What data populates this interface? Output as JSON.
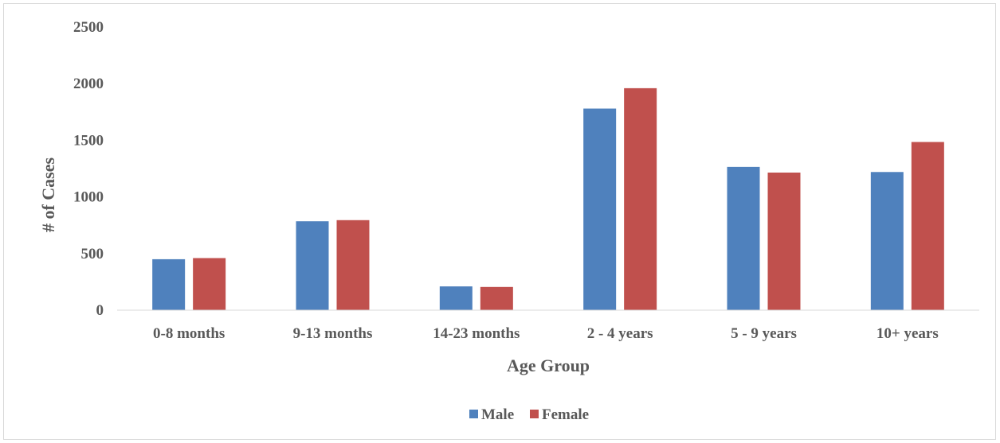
{
  "chart_data": {
    "type": "bar",
    "title": "",
    "xlabel": "Age Group",
    "ylabel": "# of Cases",
    "categories": [
      "0-8 months",
      "9-13 months",
      "14-23 months",
      "2 - 4 years",
      "5 - 9 years",
      "10+ years"
    ],
    "series": [
      {
        "name": "Male",
        "color": "#4f81bd",
        "values": [
          450,
          785,
          210,
          1780,
          1265,
          1220
        ]
      },
      {
        "name": "Female",
        "color": "#c0504d",
        "values": [
          460,
          795,
          205,
          1960,
          1215,
          1485
        ]
      }
    ],
    "ylim": [
      0,
      2500
    ],
    "yticks": [
      "0",
      "500",
      "1000",
      "1500",
      "2000",
      "2500"
    ],
    "grid": false,
    "legend_position": "bottom"
  }
}
